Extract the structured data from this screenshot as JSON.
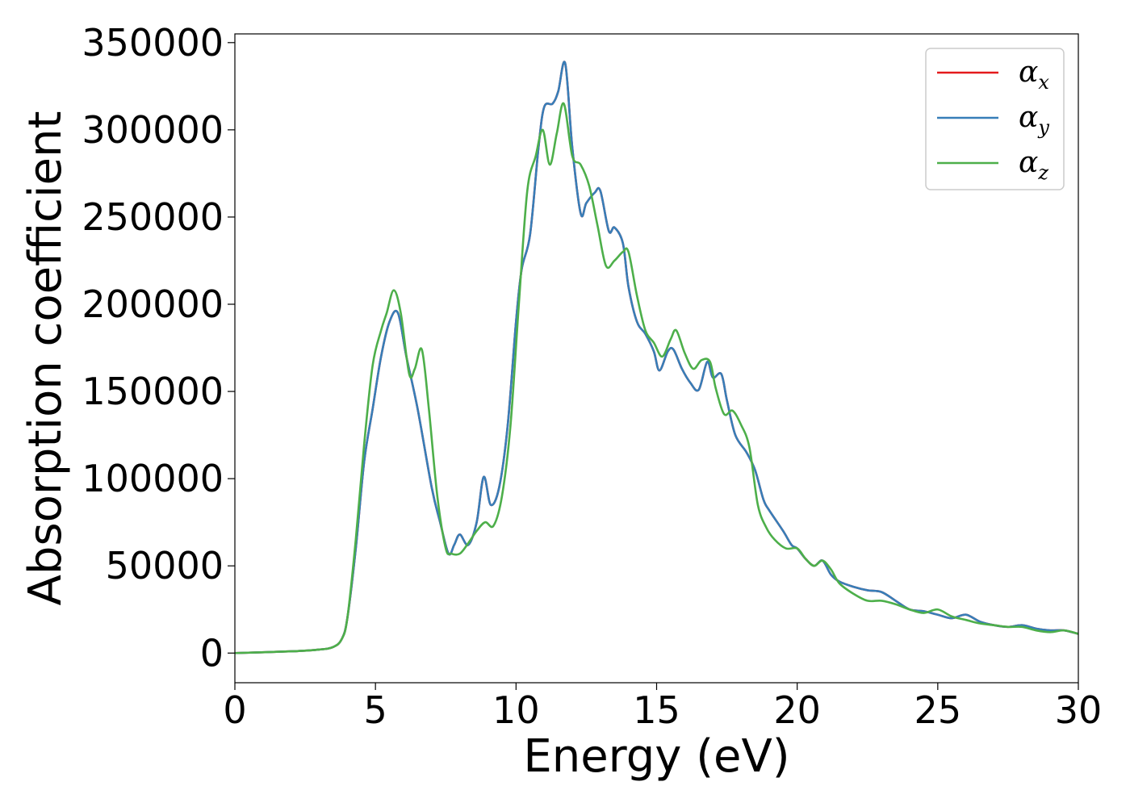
{
  "chart_data": {
    "type": "line",
    "title": "",
    "xlabel": "Energy (eV)",
    "ylabel": "Absorption coefficient",
    "xlim": [
      0,
      30
    ],
    "ylim": [
      -17000,
      355000
    ],
    "xticks": [
      0,
      5,
      10,
      15,
      20,
      25,
      30
    ],
    "xtick_labels": [
      "0",
      "5",
      "10",
      "15",
      "20",
      "25",
      "30"
    ],
    "yticks": [
      0,
      50000,
      100000,
      150000,
      200000,
      250000,
      300000,
      350000
    ],
    "ytick_labels": [
      "0",
      "50000",
      "100000",
      "150000",
      "200000",
      "250000",
      "300000",
      "350000"
    ],
    "grid": false,
    "legend": "top-right",
    "colors": {
      "x": "#e41a1c",
      "y": "#377eb8",
      "z": "#4daf4a"
    },
    "series": [
      {
        "name": "αx",
        "legend_base": "α",
        "legend_sub": "x",
        "color": "#e41a1c",
        "x": [
          0,
          2,
          3,
          3.5,
          3.8,
          4.0,
          4.3,
          4.6,
          4.9,
          5.2,
          5.5,
          5.8,
          6.1,
          6.5,
          7.0,
          7.3,
          7.6,
          7.8,
          8.0,
          8.3,
          8.6,
          8.85,
          9.1,
          9.4,
          9.7,
          10.0,
          10.2,
          10.5,
          10.8,
          11.0,
          11.3,
          11.5,
          11.75,
          12.0,
          12.3,
          12.5,
          12.8,
          13.0,
          13.3,
          13.5,
          13.8,
          14.0,
          14.3,
          14.6,
          14.9,
          15.1,
          15.4,
          15.6,
          15.9,
          16.2,
          16.5,
          16.8,
          17.0,
          17.3,
          17.5,
          17.8,
          18.2,
          18.5,
          18.8,
          19.0,
          19.5,
          19.8,
          20.0,
          20.3,
          20.6,
          20.9,
          21.2,
          21.5,
          22.0,
          22.5,
          23.0,
          23.5,
          24.0,
          24.5,
          25.0,
          25.5,
          26.0,
          26.5,
          27.0,
          27.5,
          28.0,
          28.5,
          29.0,
          29.5,
          30.0
        ],
        "values": [
          0,
          1000,
          2000,
          3500,
          8000,
          20000,
          60000,
          110000,
          140000,
          170000,
          190000,
          195000,
          170000,
          140000,
          95000,
          75000,
          57000,
          62000,
          68000,
          62000,
          75000,
          101000,
          85000,
          95000,
          130000,
          190000,
          220000,
          240000,
          290000,
          313000,
          315000,
          322000,
          338000,
          290000,
          252000,
          258000,
          264000,
          265000,
          242000,
          244000,
          235000,
          210000,
          190000,
          183000,
          173000,
          162000,
          173000,
          174000,
          163000,
          155000,
          151000,
          167000,
          158000,
          160000,
          145000,
          125000,
          115000,
          105000,
          88000,
          82000,
          70000,
          62000,
          60000,
          54000,
          50000,
          53000,
          45000,
          41000,
          38000,
          36000,
          35000,
          30000,
          25000,
          24000,
          22000,
          20000,
          22000,
          18000,
          16000,
          15000,
          16000,
          14000,
          13000,
          13000,
          11000
        ]
      },
      {
        "name": "αy",
        "legend_base": "α",
        "legend_sub": "y",
        "color": "#377eb8",
        "x": [
          0,
          2,
          3,
          3.5,
          3.8,
          4.0,
          4.3,
          4.6,
          4.9,
          5.2,
          5.5,
          5.8,
          6.1,
          6.5,
          7.0,
          7.3,
          7.6,
          7.8,
          8.0,
          8.3,
          8.6,
          8.85,
          9.1,
          9.4,
          9.7,
          10.0,
          10.2,
          10.5,
          10.8,
          11.0,
          11.3,
          11.5,
          11.75,
          12.0,
          12.3,
          12.5,
          12.8,
          13.0,
          13.3,
          13.5,
          13.8,
          14.0,
          14.3,
          14.6,
          14.9,
          15.1,
          15.4,
          15.6,
          15.9,
          16.2,
          16.5,
          16.8,
          17.0,
          17.3,
          17.5,
          17.8,
          18.2,
          18.5,
          18.8,
          19.0,
          19.5,
          19.8,
          20.0,
          20.3,
          20.6,
          20.9,
          21.2,
          21.5,
          22.0,
          22.5,
          23.0,
          23.5,
          24.0,
          24.5,
          25.0,
          25.5,
          26.0,
          26.5,
          27.0,
          27.5,
          28.0,
          28.5,
          29.0,
          29.5,
          30.0
        ],
        "values": [
          0,
          1000,
          2000,
          3500,
          8000,
          20000,
          60000,
          110000,
          140000,
          170000,
          190000,
          195000,
          170000,
          140000,
          95000,
          75000,
          57000,
          62000,
          68000,
          62000,
          75000,
          101000,
          85000,
          95000,
          130000,
          190000,
          220000,
          240000,
          290000,
          313000,
          315000,
          322000,
          338000,
          290000,
          252000,
          258000,
          264000,
          265000,
          242000,
          244000,
          235000,
          210000,
          190000,
          183000,
          173000,
          162000,
          173000,
          174000,
          163000,
          155000,
          151000,
          167000,
          158000,
          160000,
          145000,
          125000,
          115000,
          105000,
          88000,
          82000,
          70000,
          62000,
          60000,
          54000,
          50000,
          53000,
          45000,
          41000,
          38000,
          36000,
          35000,
          30000,
          25000,
          24000,
          22000,
          20000,
          22000,
          18000,
          16000,
          15000,
          16000,
          14000,
          13000,
          13000,
          11000
        ]
      },
      {
        "name": "αz",
        "legend_base": "α",
        "legend_sub": "z",
        "color": "#4daf4a",
        "x": [
          0,
          2,
          3,
          3.5,
          3.8,
          4.0,
          4.3,
          4.6,
          4.9,
          5.2,
          5.4,
          5.65,
          5.9,
          6.2,
          6.4,
          6.65,
          6.9,
          7.2,
          7.5,
          7.7,
          8.0,
          8.3,
          8.6,
          8.9,
          9.2,
          9.5,
          9.8,
          10.1,
          10.4,
          10.7,
          10.95,
          11.2,
          11.45,
          11.7,
          12.0,
          12.3,
          12.6,
          12.9,
          13.2,
          13.5,
          13.8,
          14.0,
          14.3,
          14.6,
          14.9,
          15.2,
          15.5,
          15.7,
          16.0,
          16.3,
          16.6,
          16.9,
          17.1,
          17.4,
          17.7,
          18.0,
          18.3,
          18.6,
          18.9,
          19.2,
          19.6,
          20.0,
          20.3,
          20.6,
          20.9,
          21.2,
          21.5,
          22.0,
          22.5,
          23.0,
          23.5,
          24.0,
          24.5,
          25.0,
          25.5,
          26.0,
          26.5,
          27.0,
          27.5,
          28.0,
          28.5,
          29.0,
          29.5,
          30.0
        ],
        "values": [
          0,
          1000,
          2000,
          3500,
          8000,
          20000,
          65000,
          120000,
          165000,
          185000,
          195000,
          208000,
          195000,
          160000,
          163000,
          174000,
          140000,
          90000,
          60000,
          57000,
          57000,
          63000,
          70000,
          75000,
          73000,
          90000,
          130000,
          200000,
          265000,
          285000,
          300000,
          280000,
          298000,
          315000,
          285000,
          280000,
          268000,
          245000,
          222000,
          225000,
          230000,
          230000,
          205000,
          185000,
          178000,
          170000,
          180000,
          185000,
          172000,
          163000,
          168000,
          167000,
          152000,
          137000,
          139000,
          131000,
          118000,
          85000,
          72000,
          65000,
          60000,
          60000,
          54000,
          50000,
          53000,
          48000,
          40000,
          34000,
          30000,
          30000,
          28000,
          25000,
          23000,
          25000,
          21000,
          19000,
          17000,
          16000,
          15000,
          15000,
          13000,
          12000,
          13000,
          11000
        ]
      }
    ]
  }
}
